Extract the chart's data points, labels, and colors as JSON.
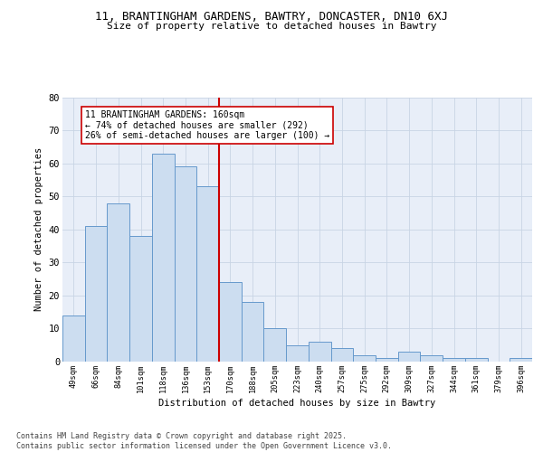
{
  "title_line1": "11, BRANTINGHAM GARDENS, BAWTRY, DONCASTER, DN10 6XJ",
  "title_line2": "Size of property relative to detached houses in Bawtry",
  "xlabel": "Distribution of detached houses by size in Bawtry",
  "ylabel": "Number of detached properties",
  "categories": [
    "49sqm",
    "66sqm",
    "84sqm",
    "101sqm",
    "118sqm",
    "136sqm",
    "153sqm",
    "170sqm",
    "188sqm",
    "205sqm",
    "223sqm",
    "240sqm",
    "257sqm",
    "275sqm",
    "292sqm",
    "309sqm",
    "327sqm",
    "344sqm",
    "361sqm",
    "379sqm",
    "396sqm"
  ],
  "bar_values": [
    14,
    41,
    48,
    38,
    63,
    59,
    53,
    24,
    18,
    10,
    5,
    6,
    4,
    2,
    1,
    3,
    2,
    1,
    1,
    0,
    1
  ],
  "bar_fill": "#ccddf0",
  "bar_edge": "#6699cc",
  "vline_x_index": 7,
  "vline_color": "#cc0000",
  "annotation_text": "11 BRANTINGHAM GARDENS: 160sqm\n← 74% of detached houses are smaller (292)\n26% of semi-detached houses are larger (100) →",
  "annotation_box_color": "#cc0000",
  "ylim": [
    0,
    80
  ],
  "yticks": [
    0,
    10,
    20,
    30,
    40,
    50,
    60,
    70,
    80
  ],
  "grid_color": "#c8d4e4",
  "bg_color": "#e8eef8",
  "footer": "Contains HM Land Registry data © Crown copyright and database right 2025.\nContains public sector information licensed under the Open Government Licence v3.0.",
  "fig_width": 6.0,
  "fig_height": 5.0,
  "dpi": 100
}
